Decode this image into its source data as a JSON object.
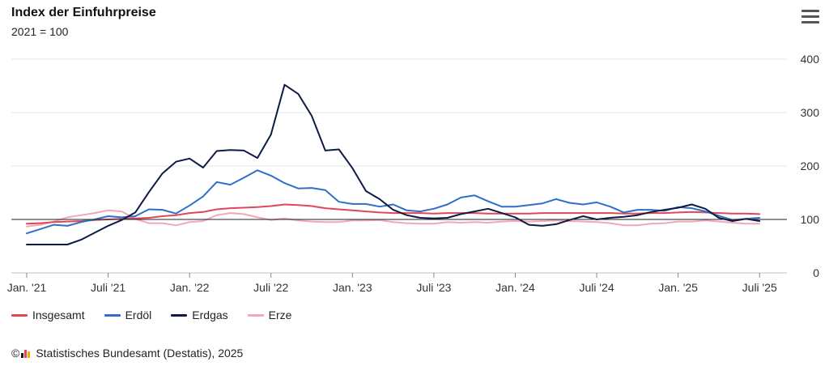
{
  "header": {
    "title": "Index der Einfuhrpreise",
    "subtitle": "2021 = 100"
  },
  "menu": {
    "icon": "hamburger-menu-icon"
  },
  "footer": {
    "copyright_symbol": "©",
    "credit": "Statistisches Bundesamt (Destatis), 2025",
    "logo": "destatis-logo-icon"
  },
  "colors": {
    "Insgesamt": "#e0485a",
    "Erdöl": "#2f6fc7",
    "Erdgas": "#0d1b45",
    "Erze": "#f4a7b4",
    "reference_line": "#222222",
    "grid": "#e6e6e6"
  },
  "chart_data": {
    "type": "line",
    "title": "Index der Einfuhrpreise",
    "subtitle": "2021 = 100",
    "x_tick_labels": [
      "Jan. '21",
      "Juli '21",
      "Jan. '22",
      "Juli '22",
      "Jan. '23",
      "Juli '23",
      "Jan. '24",
      "Juli '24",
      "Jan. '25",
      "Juli '25"
    ],
    "x_tick_months": [
      0,
      6,
      12,
      18,
      24,
      30,
      36,
      42,
      48,
      54
    ],
    "x_range_months": [
      0,
      55
    ],
    "y_ticks": [
      0,
      100,
      200,
      300,
      400
    ],
    "ylim": [
      0,
      400
    ],
    "reference_value": 100,
    "grid": true,
    "legend_position": "bottom-left",
    "series": [
      {
        "name": "Insgesamt",
        "x": [
          0,
          1,
          2,
          3,
          4,
          5,
          6,
          7,
          8,
          9,
          10,
          11,
          12,
          13,
          14,
          15,
          16,
          17,
          18,
          19,
          20,
          21,
          22,
          23,
          24,
          25,
          26,
          27,
          28,
          29,
          30,
          31,
          32,
          33,
          34,
          35,
          36,
          37,
          38,
          39,
          40,
          41,
          42,
          43,
          44,
          45,
          46,
          47,
          48,
          49,
          50,
          51,
          52,
          53,
          54
        ],
        "values": [
          92,
          93,
          95,
          96,
          97,
          99,
          100,
          101,
          102,
          103,
          106,
          108,
          112,
          114,
          119,
          121,
          122,
          123,
          125,
          128,
          127,
          125,
          121,
          119,
          117,
          115,
          113,
          112,
          112,
          112,
          111,
          112,
          112,
          112,
          111,
          111,
          111,
          111,
          112,
          112,
          112,
          112,
          112,
          112,
          111,
          111,
          112,
          112,
          113,
          114,
          113,
          112,
          111,
          111,
          110
        ]
      },
      {
        "name": "Erdöl",
        "x": [
          0,
          1,
          2,
          3,
          4,
          5,
          6,
          7,
          8,
          9,
          10,
          11,
          12,
          13,
          14,
          15,
          16,
          17,
          18,
          19,
          20,
          21,
          22,
          23,
          24,
          25,
          26,
          27,
          28,
          29,
          30,
          31,
          32,
          33,
          34,
          35,
          36,
          37,
          38,
          39,
          40,
          41,
          42,
          43,
          44,
          45,
          46,
          47,
          48,
          49,
          50,
          51,
          52,
          53,
          54
        ],
        "values": [
          74,
          82,
          90,
          88,
          95,
          100,
          106,
          104,
          106,
          119,
          118,
          111,
          126,
          143,
          170,
          165,
          178,
          192,
          182,
          168,
          158,
          159,
          155,
          133,
          129,
          129,
          124,
          128,
          117,
          115,
          120,
          128,
          141,
          145,
          134,
          124,
          124,
          127,
          130,
          138,
          131,
          128,
          132,
          124,
          113,
          118,
          118,
          116,
          123,
          121,
          115,
          107,
          99,
          101,
          103
        ]
      },
      {
        "name": "Erdgas",
        "x": [
          0,
          1,
          2,
          3,
          4,
          5,
          6,
          7,
          8,
          9,
          10,
          11,
          12,
          13,
          14,
          15,
          16,
          17,
          18,
          19,
          20,
          21,
          22,
          23,
          24,
          25,
          26,
          27,
          28,
          29,
          30,
          31,
          32,
          33,
          34,
          35,
          36,
          37,
          38,
          39,
          40,
          41,
          42,
          43,
          44,
          45,
          46,
          47,
          48,
          49,
          50,
          51,
          52,
          53,
          54
        ],
        "values": [
          53,
          53,
          53,
          53,
          62,
          75,
          88,
          99,
          113,
          151,
          186,
          208,
          214,
          197,
          228,
          230,
          229,
          215,
          259,
          352,
          335,
          294,
          229,
          231,
          196,
          153,
          138,
          118,
          108,
          103,
          102,
          103,
          110,
          115,
          120,
          112,
          104,
          90,
          88,
          91,
          99,
          106,
          100,
          103,
          105,
          108,
          114,
          118,
          122,
          128,
          120,
          103,
          97,
          101,
          97
        ]
      },
      {
        "name": "Erze",
        "x": [
          0,
          1,
          2,
          3,
          4,
          5,
          6,
          7,
          8,
          9,
          10,
          11,
          12,
          13,
          14,
          15,
          16,
          17,
          18,
          19,
          20,
          21,
          22,
          23,
          24,
          25,
          26,
          27,
          28,
          29,
          30,
          31,
          32,
          33,
          34,
          35,
          36,
          37,
          38,
          39,
          40,
          41,
          42,
          43,
          44,
          45,
          46,
          47,
          48,
          49,
          50,
          51,
          52,
          53,
          54
        ],
        "values": [
          87,
          90,
          96,
          104,
          108,
          112,
          117,
          115,
          101,
          93,
          93,
          89,
          95,
          97,
          108,
          112,
          110,
          104,
          99,
          102,
          98,
          96,
          95,
          95,
          98,
          98,
          99,
          95,
          93,
          92,
          92,
          95,
          94,
          95,
          94,
          96,
          97,
          96,
          97,
          98,
          97,
          96,
          95,
          93,
          89,
          89,
          92,
          93,
          96,
          96,
          98,
          96,
          94,
          92,
          92
        ]
      }
    ]
  }
}
